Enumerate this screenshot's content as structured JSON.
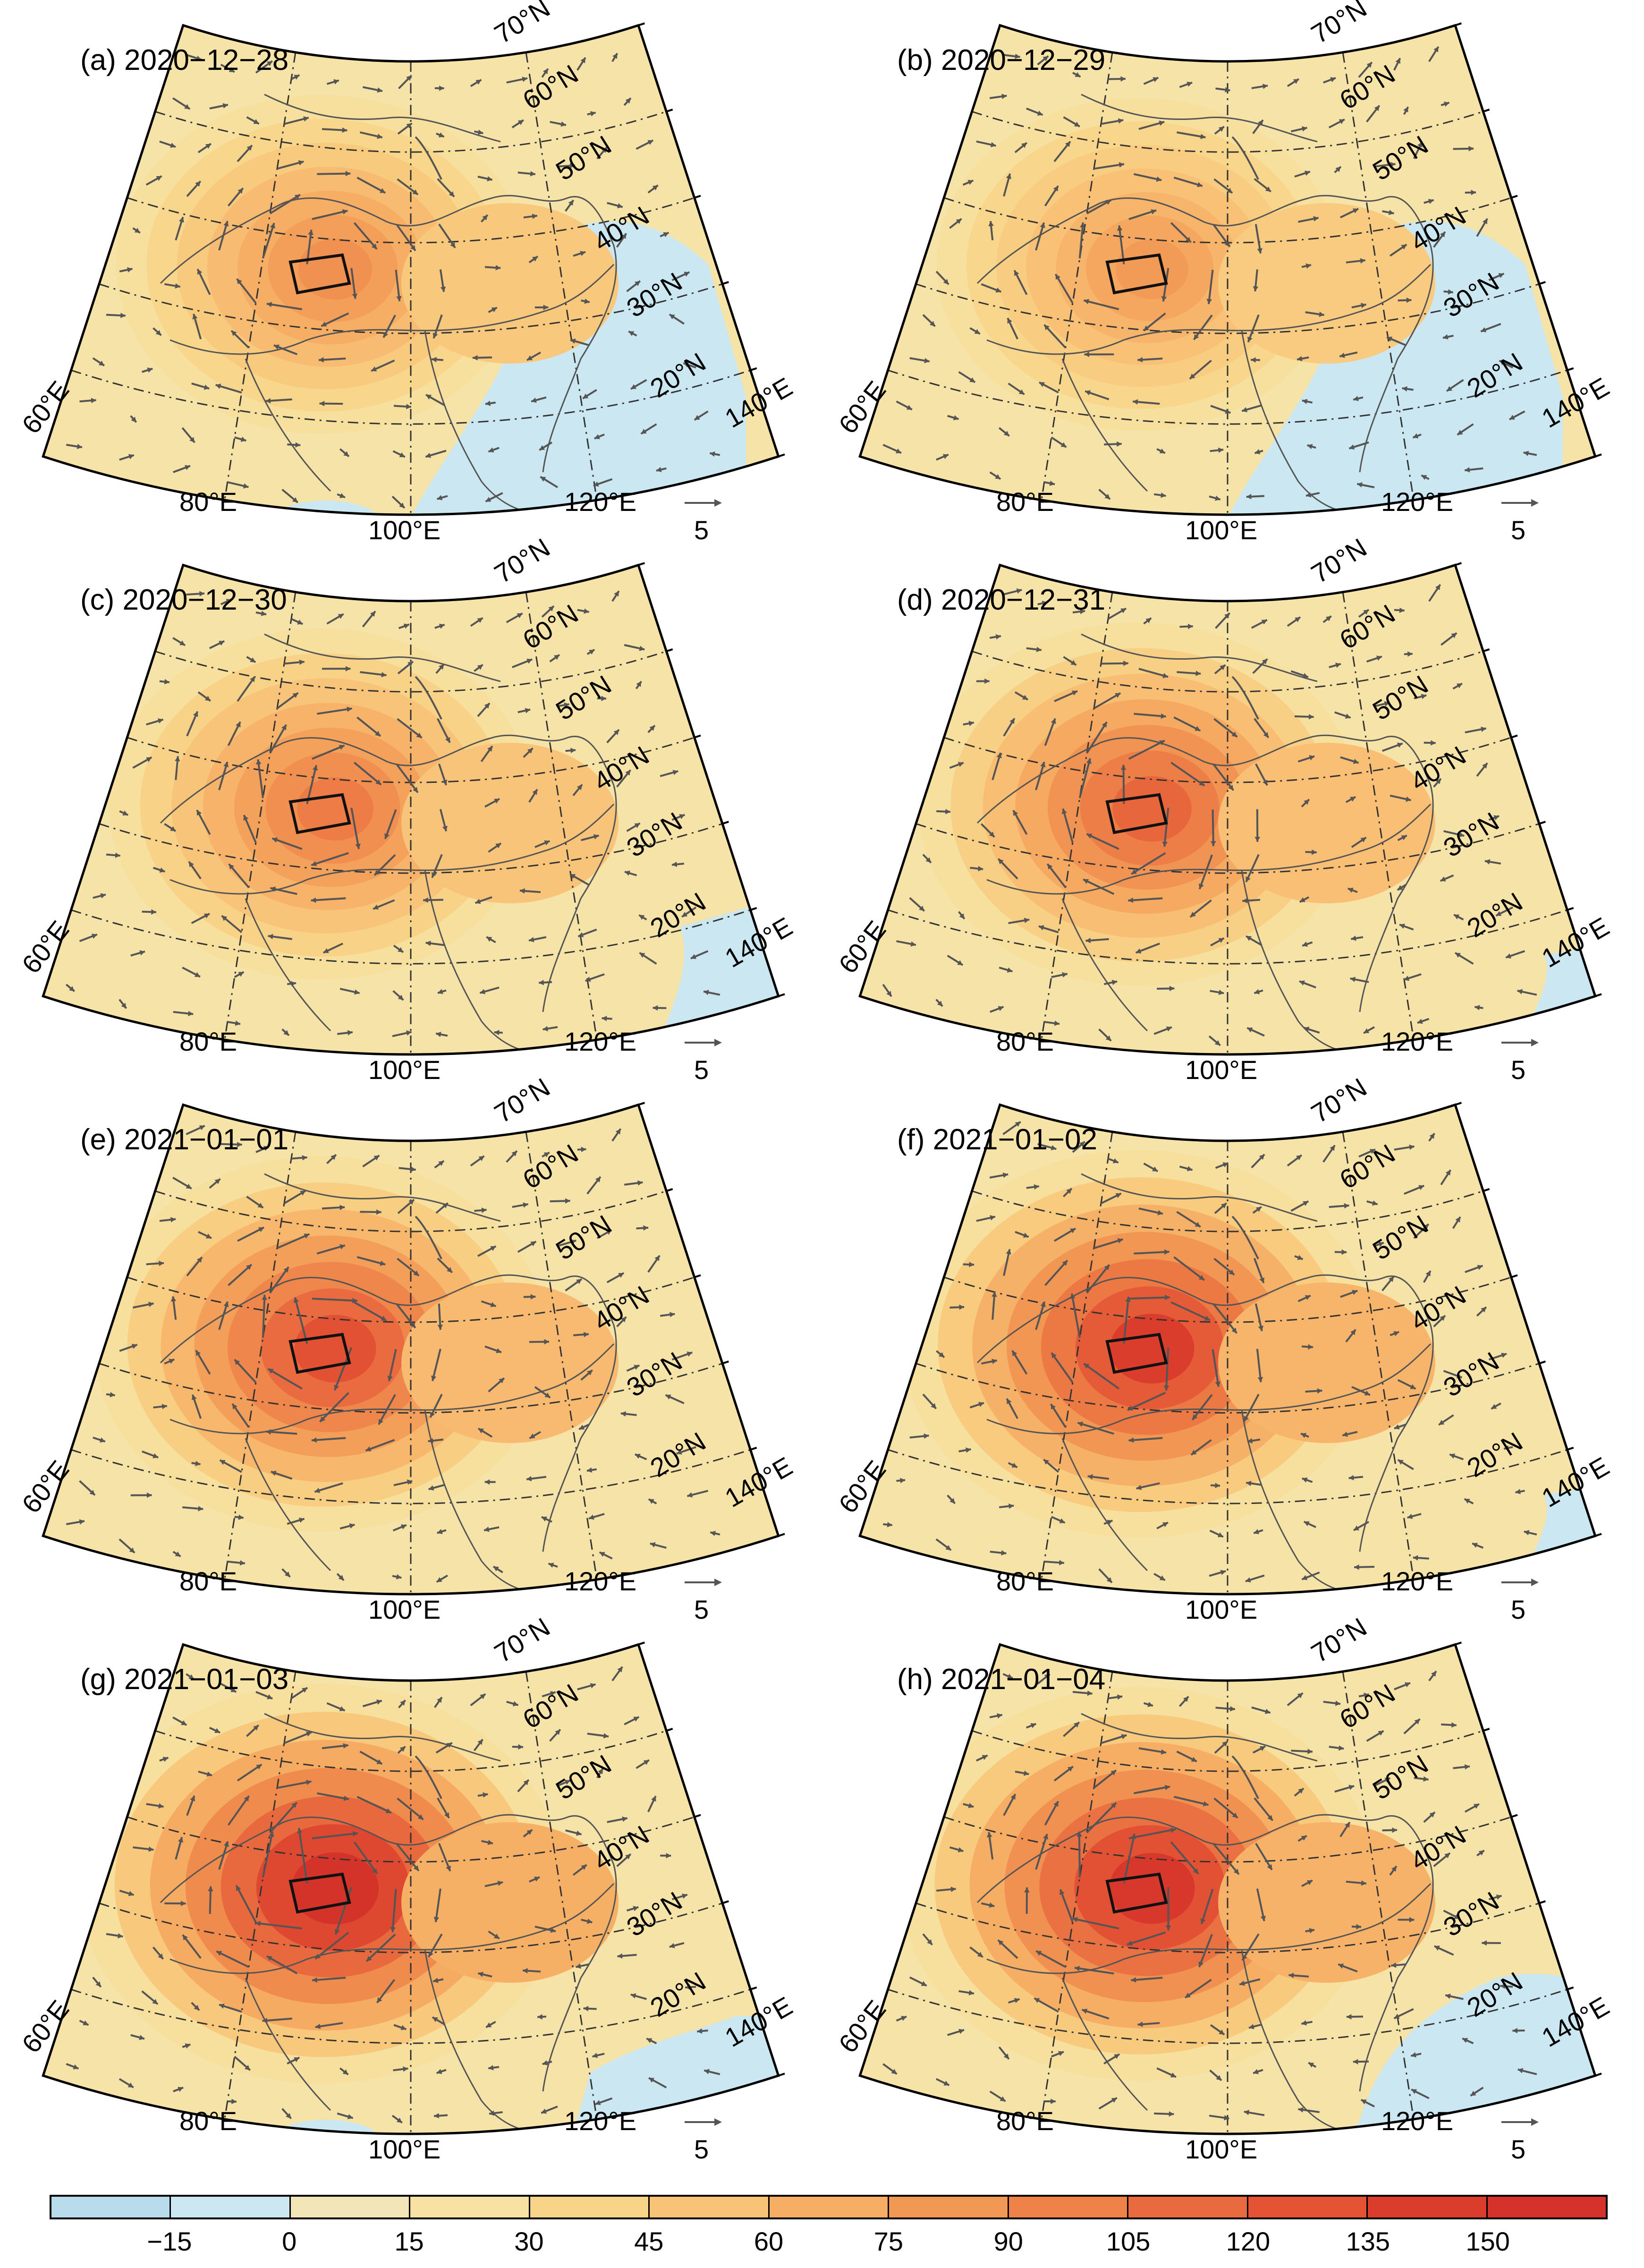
{
  "figure": {
    "panels": [
      {
        "label": "(a) 2020−12−28",
        "intensity": 0.45,
        "negative_region": "east-coast",
        "box_intensity": 0.55
      },
      {
        "label": "(b) 2020−12−29",
        "intensity": 0.4,
        "negative_region": "east-coast",
        "box_intensity": 0.5
      },
      {
        "label": "(c) 2020−12−30",
        "intensity": 0.55,
        "negative_region": "east-corner",
        "box_intensity": 0.65
      },
      {
        "label": "(d) 2020−12−31",
        "intensity": 0.65,
        "negative_region": "east-corner-small",
        "box_intensity": 0.75
      },
      {
        "label": "(e) 2021−01−01",
        "intensity": 0.75,
        "negative_region": "none",
        "box_intensity": 0.85
      },
      {
        "label": "(f) 2021−01−02",
        "intensity": 0.85,
        "negative_region": "east-corner-small",
        "box_intensity": 0.92
      },
      {
        "label": "(g) 2021−01−03",
        "intensity": 0.95,
        "negative_region": "southeast",
        "box_intensity": 1.0
      },
      {
        "label": "(h) 2021−01−04",
        "intensity": 0.9,
        "negative_region": "southeast-large",
        "box_intensity": 0.95
      }
    ],
    "lat_labels": [
      "70°N",
      "60°N",
      "50°N",
      "40°N",
      "30°N",
      "20°N"
    ],
    "lon_labels": [
      "60°E",
      "80°E",
      "100°E",
      "120°E",
      "140°E"
    ],
    "reference_vector": "5",
    "colorbar": {
      "ticks": [
        "−15",
        "0",
        "15",
        "30",
        "45",
        "60",
        "75",
        "90",
        "105",
        "120",
        "135",
        "150"
      ],
      "colors": [
        "#b9dced",
        "#cbe7f2",
        "#f2e6b8",
        "#f7e2a4",
        "#f8d488",
        "#f8c277",
        "#f6ad64",
        "#f29855",
        "#ee8249",
        "#e96a3e",
        "#e35334",
        "#db3d2c",
        "#d4322a"
      ]
    }
  }
}
